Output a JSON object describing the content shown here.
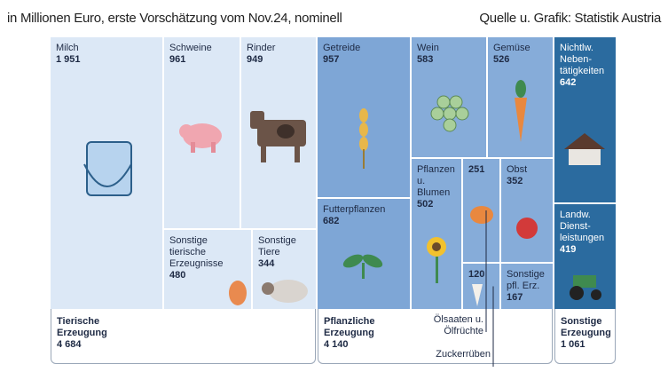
{
  "chart_data": {
    "type": "treemap",
    "subtitle": "in Millionen Euro, erste Vorschätzung vom Nov.24, nominell",
    "source": "Quelle u. Grafik: Statistik Austria",
    "groups": [
      {
        "name": "Tierische Erzeugung",
        "value": 4684,
        "value_label": "4 684",
        "color": "#dce8f6",
        "items": [
          {
            "name": "Milch",
            "value": 1951,
            "value_label": "1 951"
          },
          {
            "name": "Schweine",
            "value": 961
          },
          {
            "name": "Rinder",
            "value": 949
          },
          {
            "name": "Sonstige tierische Erzeugnisse",
            "value": 480
          },
          {
            "name": "Sonstige Tiere",
            "value": 344
          }
        ]
      },
      {
        "name": "Pflanzliche Erzeugung",
        "value": 4140,
        "value_label": "4 140",
        "color": "#86acd9",
        "items": [
          {
            "name": "Getreide",
            "value": 957
          },
          {
            "name": "Futterpflanzen",
            "value": 682
          },
          {
            "name": "Wein",
            "value": 583
          },
          {
            "name": "Gemüse",
            "value": 526
          },
          {
            "name": "Pflanzen u. Blumen",
            "value": 502
          },
          {
            "name": "Ölsaaten u. Ölfrüchte",
            "value": 251
          },
          {
            "name": "Obst",
            "value": 352
          },
          {
            "name": "Zuckerrüben",
            "value": 120
          },
          {
            "name": "Sonstige pfl. Erz.",
            "value": 167
          }
        ]
      },
      {
        "name": "Sonstige Erzeugung",
        "value": 1061,
        "value_label": "1 061",
        "color": "#2b6b9f",
        "items": [
          {
            "name": "Nichtlw. Neben-tätigkeiten",
            "value": 642
          },
          {
            "name": "Landw. Dienst-leistungen",
            "value": 419
          }
        ]
      }
    ]
  }
}
